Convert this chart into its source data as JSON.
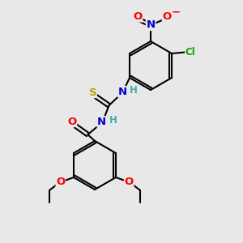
{
  "bg_color": "#e8e8e8",
  "bond_color": "#000000",
  "bond_width": 1.5,
  "atom_colors": {
    "C": "#000000",
    "N": "#0000cc",
    "O": "#ff0000",
    "S": "#aaaa00",
    "Cl": "#00aa00",
    "H": "#44aaaa"
  },
  "font_size": 8.5
}
